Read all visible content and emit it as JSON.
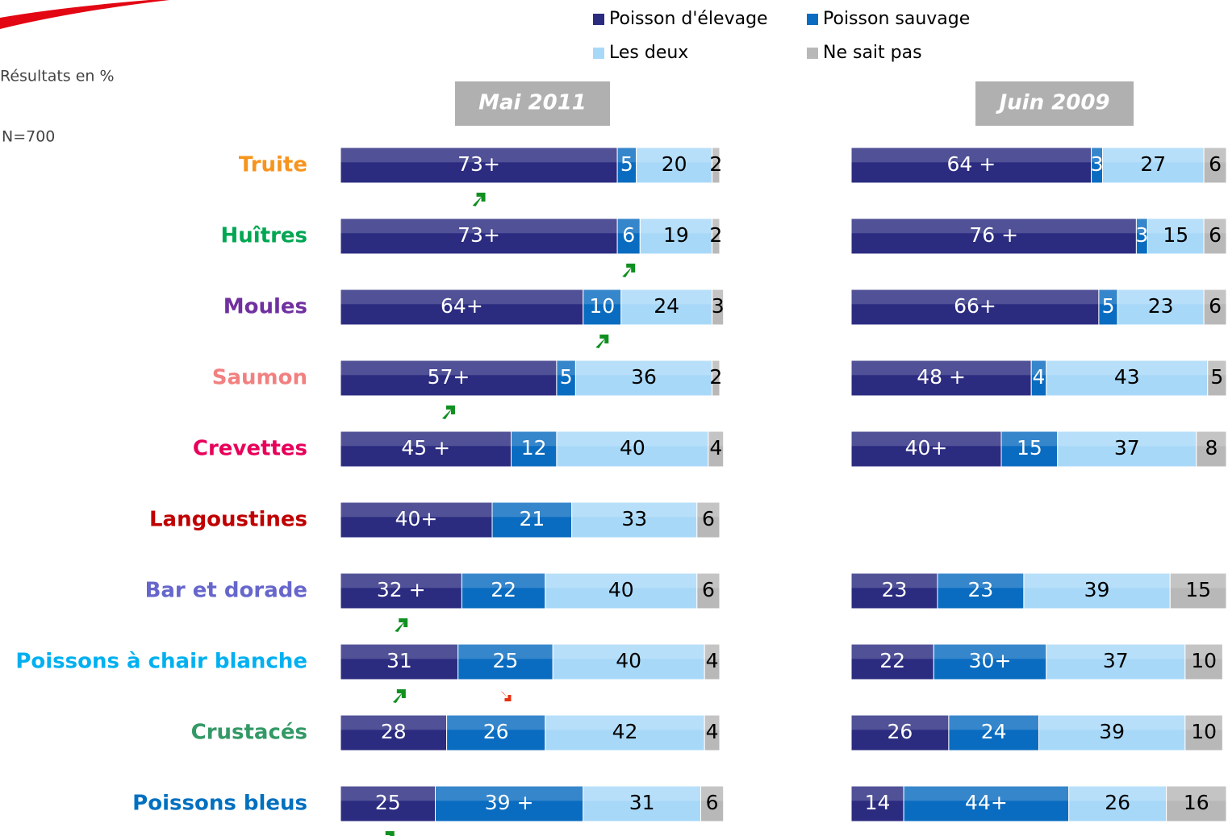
{
  "subtitle": "Résultats en %",
  "sample": "N=700",
  "chart_data": [
    {
      "type": "stacked-bar-horizontal",
      "title": "Mai 2011",
      "xlim": [
        0,
        100
      ],
      "categories": [
        "Truite",
        "Huîtres",
        "Moules",
        "Saumon",
        "Crevettes",
        "Langoustines",
        "Bar et dorade",
        "Poissons à chair blanche",
        "Crustacés",
        "Poissons bleus"
      ],
      "category_colors": [
        "#f7941d",
        "#00a651",
        "#7030a0",
        "#f28080",
        "#e8005a",
        "#c00000",
        "#6666cc",
        "#00b0f0",
        "#339966",
        "#0070c0"
      ],
      "series": [
        {
          "name": "Poisson d'élevage",
          "color": "#2b2b80",
          "label_color": "#ffffff",
          "values": [
            73,
            73,
            64,
            57,
            45,
            40,
            32,
            31,
            28,
            25
          ],
          "value_labels": [
            "73+",
            "73+",
            "64+",
            "57+",
            "45 +",
            "40+",
            "32 +",
            "31",
            "28",
            "25"
          ],
          "changes": [
            "up",
            null,
            null,
            "up",
            null,
            null,
            "up",
            "up",
            null,
            "up"
          ]
        },
        {
          "name": "Poisson sauvage",
          "color": "#0a6cc0",
          "label_color": "#ffffff",
          "values": [
            5,
            6,
            10,
            5,
            12,
            21,
            22,
            25,
            26,
            39
          ],
          "value_labels": [
            "5",
            "6",
            "10",
            "5",
            "12",
            "21",
            "22",
            "25",
            "26",
            "39 +"
          ],
          "changes": [
            null,
            "up",
            "up",
            null,
            null,
            null,
            null,
            "down",
            null,
            null
          ]
        },
        {
          "name": "Les deux",
          "color": "#a8d8f8",
          "label_color": "#000000",
          "values": [
            20,
            19,
            24,
            36,
            40,
            33,
            40,
            40,
            42,
            31
          ]
        },
        {
          "name": "Ne sait pas",
          "color": "#b8b8b8",
          "label_color": "#000000",
          "values": [
            2,
            2,
            3,
            2,
            4,
            6,
            6,
            4,
            4,
            6
          ]
        }
      ]
    },
    {
      "type": "stacked-bar-horizontal",
      "title": "Juin 2009",
      "xlim": [
        0,
        100
      ],
      "series": [
        {
          "name": "Poisson d'élevage",
          "color": "#2b2b80",
          "label_color": "#ffffff",
          "values": [
            64,
            76,
            66,
            48,
            40,
            null,
            23,
            22,
            26,
            14
          ],
          "value_labels": [
            "64 +",
            "76 +",
            "66+",
            "48 +",
            "40+",
            null,
            "23",
            "22",
            "26",
            "14"
          ]
        },
        {
          "name": "Poisson sauvage",
          "color": "#0a6cc0",
          "label_color": "#ffffff",
          "values": [
            3,
            3,
            5,
            4,
            15,
            null,
            23,
            30,
            24,
            44
          ],
          "value_labels": [
            "3",
            "3",
            "5",
            "4",
            "15",
            null,
            "23",
            "30+",
            "24",
            "44+"
          ]
        },
        {
          "name": "Les deux",
          "color": "#a8d8f8",
          "label_color": "#000000",
          "values": [
            27,
            15,
            23,
            43,
            37,
            null,
            39,
            37,
            39,
            26
          ]
        },
        {
          "name": "Ne sait pas",
          "color": "#b8b8b8",
          "label_color": "#000000",
          "values": [
            6,
            6,
            6,
            5,
            8,
            null,
            15,
            10,
            10,
            16
          ]
        }
      ]
    }
  ]
}
